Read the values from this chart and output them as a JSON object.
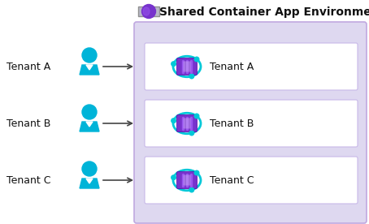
{
  "title": "Shared Container App Environment",
  "tenants": [
    "Tenant A",
    "Tenant B",
    "Tenant C"
  ],
  "bg_color": "#ffffff",
  "env_bg_color": "#ded8f0",
  "box_bg_color": "#ffffff",
  "box_border_color": "#c8b8e8",
  "env_border_color": "#c0a8e0",
  "title_color": "#111111",
  "tenant_label_color": "#111111",
  "arrow_color": "#444444",
  "person_color": "#00b4d8",
  "container_purple": "#7733cc",
  "container_purple_dark": "#5500aa",
  "container_purple_light": "#9955ee",
  "container_cyan": "#00c8d8",
  "icon_gray": "#b8b8c8",
  "icon_gray_dark": "#909090"
}
